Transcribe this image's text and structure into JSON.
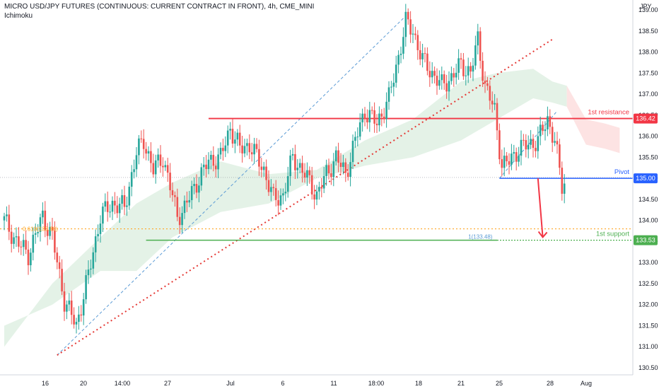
{
  "header": {
    "title": "MICRO USD/JPY FUTURES (CONTINUOUS: CURRENT CONTRACT IN FRONT), 4h, CME_MINI",
    "indicator": "Ichimoku"
  },
  "colors": {
    "up": "#26a69a",
    "down": "#ef5350",
    "resistance": "#f23645",
    "support": "#4caf50",
    "pivot": "#2962ff",
    "fib": "#ffa726",
    "trend": "#e53935",
    "channel": "#5b9bd5",
    "cloud_bull": "#e4f2e7",
    "cloud_bear": "#fde3e3"
  },
  "chart_data": {
    "type": "candlestick",
    "currency": "JPY",
    "ylim": [
      130.3,
      139.2
    ],
    "y_ticks": [
      "139.00",
      "138.50",
      "138.00",
      "137.50",
      "137.00",
      "136.50",
      "136.00",
      "135.50",
      "135.00",
      "134.50",
      "134.00",
      "133.50",
      "133.00",
      "132.50",
      "132.00",
      "131.50",
      "131.00",
      "130.50"
    ],
    "x_labels": [
      "16",
      "20",
      "14:00",
      "27",
      "Jul",
      "6",
      "11",
      "18:00",
      "18",
      "21",
      "25",
      "28",
      "Aug"
    ],
    "price_tags": [
      {
        "value": 136.42,
        "label": "136.42",
        "color": "#f23645"
      },
      {
        "value": 135.0,
        "label": "135.00",
        "color": "#2962ff"
      },
      {
        "value": 133.53,
        "label": "133.53",
        "color": "#4caf50"
      }
    ],
    "levels": [
      {
        "name": "1st resistance",
        "value": 136.42,
        "color": "#f23645"
      },
      {
        "name": "Pivot",
        "value": 135.0,
        "color": "#2962ff"
      },
      {
        "name": "1st support",
        "value": 133.53,
        "color": "#4caf50"
      }
    ],
    "fib_label": "1(133.48)",
    "fib_level_label": "0.618(133.80)",
    "close_anchors": [
      [
        0,
        134.0
      ],
      [
        5,
        133.5
      ],
      [
        10,
        133.2
      ],
      [
        16,
        134.1
      ],
      [
        20,
        133.6
      ],
      [
        25,
        132.1
      ],
      [
        30,
        131.5
      ],
      [
        35,
        132.7
      ],
      [
        40,
        134.1
      ],
      [
        45,
        134.4
      ],
      [
        50,
        134.3
      ],
      [
        55,
        135.6
      ],
      [
        58,
        135.9
      ],
      [
        62,
        135.2
      ],
      [
        66,
        135.5
      ],
      [
        72,
        134.1
      ],
      [
        75,
        134.3
      ],
      [
        80,
        134.9
      ],
      [
        85,
        135.4
      ],
      [
        90,
        135.5
      ],
      [
        94,
        136.2
      ],
      [
        98,
        135.7
      ],
      [
        102,
        135.8
      ],
      [
        108,
        135.2
      ],
      [
        112,
        134.5
      ],
      [
        116,
        134.6
      ],
      [
        120,
        135.5
      ],
      [
        125,
        135.1
      ],
      [
        130,
        134.6
      ],
      [
        134,
        135.1
      ],
      [
        138,
        135.5
      ],
      [
        142,
        135.1
      ],
      [
        146,
        135.9
      ],
      [
        150,
        136.6
      ],
      [
        155,
        136.3
      ],
      [
        160,
        136.9
      ],
      [
        164,
        137.9
      ],
      [
        167,
        138.7
      ],
      [
        170,
        138.5
      ],
      [
        174,
        137.8
      ],
      [
        178,
        137.5
      ],
      [
        182,
        137.2
      ],
      [
        186,
        137.4
      ],
      [
        190,
        137.7
      ],
      [
        194,
        137.5
      ],
      [
        197,
        138.3
      ],
      [
        200,
        137.2
      ],
      [
        204,
        136.6
      ],
      [
        207,
        135.3
      ],
      [
        210,
        135.4
      ],
      [
        214,
        135.7
      ],
      [
        218,
        135.8
      ],
      [
        222,
        135.9
      ],
      [
        226,
        136.4
      ],
      [
        229,
        135.9
      ],
      [
        232,
        134.8
      ],
      [
        234,
        135.0
      ]
    ],
    "cloud_bull_upper": [
      [
        0,
        131.0
      ],
      [
        20,
        132.5
      ],
      [
        40,
        133.6
      ],
      [
        55,
        134.4
      ],
      [
        70,
        134.9
      ],
      [
        90,
        135.4
      ],
      [
        110,
        135.1
      ],
      [
        130,
        135.2
      ],
      [
        150,
        135.9
      ],
      [
        170,
        136.4
      ],
      [
        190,
        137.3
      ],
      [
        205,
        137.5
      ],
      [
        220,
        137.6
      ],
      [
        228,
        137.3
      ],
      [
        234,
        137.2
      ]
    ],
    "cloud_bull_lower": [
      [
        0,
        131.5
      ],
      [
        20,
        132.0
      ],
      [
        40,
        132.8
      ],
      [
        55,
        132.8
      ],
      [
        70,
        133.6
      ],
      [
        90,
        134.2
      ],
      [
        110,
        134.4
      ],
      [
        130,
        135.0
      ],
      [
        150,
        135.3
      ],
      [
        170,
        135.5
      ],
      [
        190,
        135.9
      ],
      [
        205,
        136.4
      ],
      [
        220,
        136.9
      ],
      [
        228,
        136.8
      ],
      [
        234,
        136.7
      ]
    ],
    "cloud_bear_upper": [
      [
        234,
        137.2
      ],
      [
        242,
        136.4
      ],
      [
        250,
        136.3
      ],
      [
        256,
        136.2
      ]
    ],
    "cloud_bear_lower": [
      [
        234,
        136.7
      ],
      [
        242,
        135.8
      ],
      [
        250,
        135.7
      ],
      [
        256,
        135.6
      ]
    ],
    "trend_dotted": {
      "from": [
        22,
        130.8
      ],
      "to": [
        228,
        138.3
      ]
    },
    "channel_dashed": {
      "from": [
        22,
        130.8
      ],
      "to": [
        166,
        138.8
      ]
    },
    "projection": {
      "from": [
        206,
        135.0
      ],
      "to": [
        230,
        136.6
      ]
    },
    "arrow": {
      "from": [
        222,
        135.0
      ],
      "to": [
        224,
        133.6
      ]
    }
  }
}
